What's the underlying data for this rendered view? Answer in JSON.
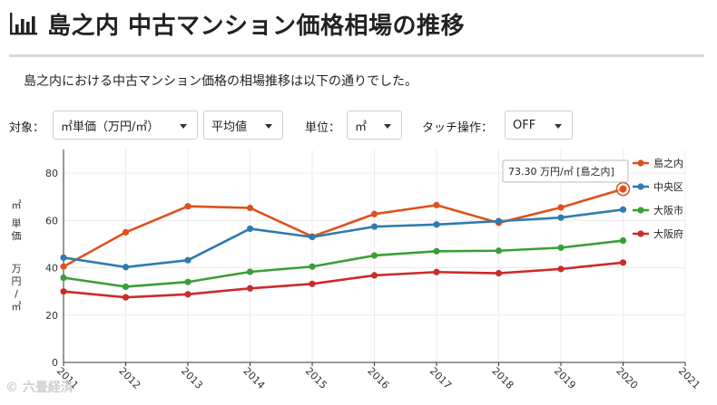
{
  "header": {
    "title": "島之内 中古マンション価格相場の推移",
    "icon": "bar-chart-icon",
    "intro": "島之内における中古マンション価格の相場推移は以下の通りでした。"
  },
  "controls": {
    "target_label": "対象：",
    "target_value": "㎡単価（万円/㎡）",
    "stat_value": "平均値",
    "unit_label": "単位：",
    "unit_value": "㎡",
    "touch_label": "タッチ操作：",
    "touch_value": "OFF"
  },
  "tooltip": {
    "text": "73.30 万円/㎡ [島之内]"
  },
  "watermark": "© 六畳経済",
  "chart_data": {
    "type": "line",
    "title": "",
    "ylabel": "㎡単価 万円/㎡",
    "ylabel_top": "㎡",
    "ylabel_mid": "単価",
    "ylabel_bottom": "万円/㎡",
    "xlabel": "",
    "ylim": [
      0,
      90
    ],
    "yticks": [
      0,
      20,
      40,
      60,
      80
    ],
    "x_ticks": [
      "2011",
      "2012",
      "2013",
      "2014",
      "2015",
      "2016",
      "2017",
      "2018",
      "2019",
      "2020",
      "2021"
    ],
    "x": [
      2011,
      2012,
      2013,
      2014,
      2015,
      2016,
      2017,
      2018,
      2019,
      2020
    ],
    "xlim": [
      2011,
      2021
    ],
    "grid": true,
    "legend_position": "top-right",
    "series": [
      {
        "name": "島之内",
        "color": "#e0501c",
        "values": [
          40.5,
          55.0,
          66.0,
          65.3,
          53.2,
          62.7,
          66.5,
          59.0,
          65.5,
          73.3
        ]
      },
      {
        "name": "中央区",
        "color": "#2e7bb0",
        "values": [
          44.3,
          40.3,
          43.2,
          56.5,
          53.0,
          57.4,
          58.3,
          59.7,
          61.2,
          64.6
        ]
      },
      {
        "name": "大阪市",
        "color": "#3a9e38",
        "values": [
          35.8,
          32.0,
          34.0,
          38.3,
          40.5,
          45.2,
          47.0,
          47.2,
          48.5,
          51.5
        ]
      },
      {
        "name": "大阪府",
        "color": "#cc2b2b",
        "values": [
          30.0,
          27.5,
          28.8,
          31.3,
          33.2,
          36.8,
          38.2,
          37.7,
          39.5,
          42.2
        ]
      }
    ]
  }
}
